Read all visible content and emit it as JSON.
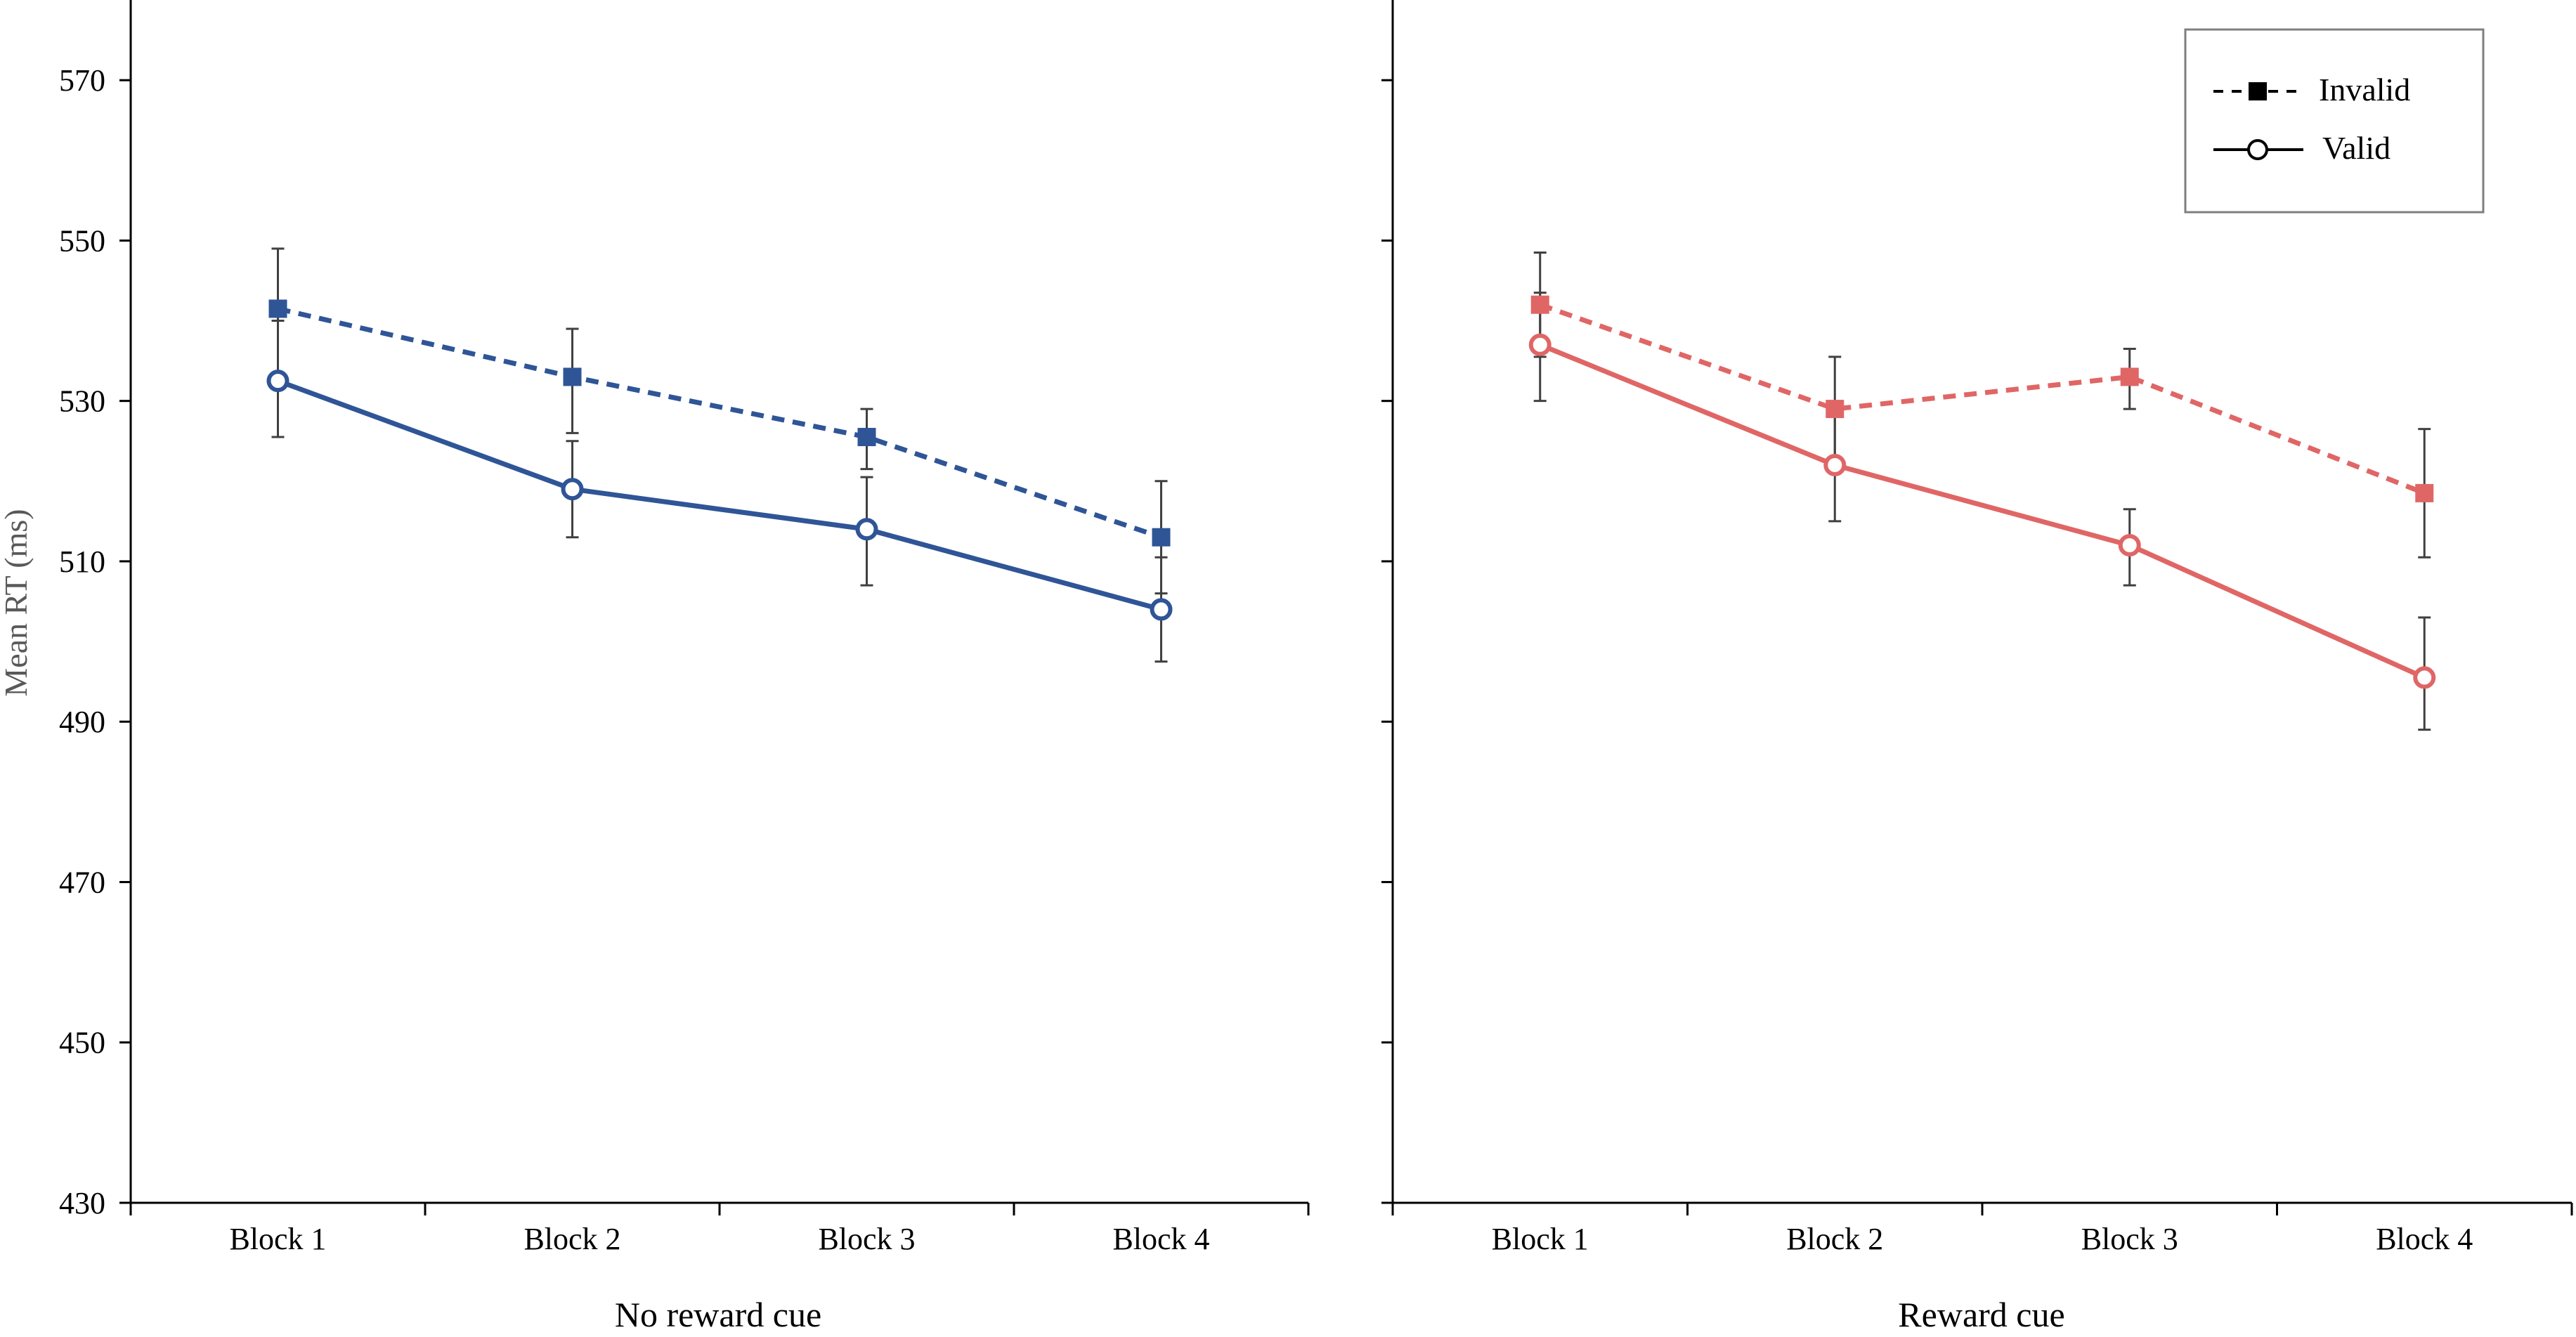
{
  "chart_data": [
    {
      "type": "line",
      "panel": "left",
      "xlabel": "No reward cue",
      "ylabel": "Mean RT (ms)",
      "ylim": [
        430,
        580
      ],
      "yticks": [
        430,
        450,
        470,
        490,
        510,
        530,
        550,
        570
      ],
      "categories": [
        "Block 1",
        "Block 2",
        "Block 3",
        "Block 4"
      ],
      "series": [
        {
          "name": "Invalid",
          "style": "dashed",
          "marker": "filled-square",
          "color": "#2f5597",
          "values": [
            541.5,
            533,
            525.5,
            513
          ],
          "err_low": [
            532.5,
            526,
            521.5,
            506
          ],
          "err_high": [
            549,
            539,
            529,
            520
          ]
        },
        {
          "name": "Valid",
          "style": "solid",
          "marker": "open-circle",
          "color": "#2f5597",
          "values": [
            532.5,
            519,
            514,
            504
          ],
          "err_low": [
            525.5,
            513,
            507,
            497.5
          ],
          "err_high": [
            540,
            525,
            520.5,
            510.5
          ]
        }
      ]
    },
    {
      "type": "line",
      "panel": "right",
      "xlabel": "Reward cue",
      "ylim": [
        430,
        580
      ],
      "categories": [
        "Block 1",
        "Block 2",
        "Block 3",
        "Block 4"
      ],
      "series": [
        {
          "name": "Invalid",
          "style": "dashed",
          "marker": "filled-square",
          "color": "#e06666",
          "values": [
            542,
            529,
            533,
            518.5
          ],
          "err_low": [
            535.5,
            522.5,
            529,
            510.5
          ],
          "err_high": [
            548.5,
            535.5,
            536.5,
            526.5
          ]
        },
        {
          "name": "Valid",
          "style": "solid",
          "marker": "open-circle",
          "color": "#e06666",
          "values": [
            537,
            522,
            512,
            495.5
          ],
          "err_low": [
            530,
            515,
            507,
            489
          ],
          "err_high": [
            543.5,
            529,
            516.5,
            503
          ]
        }
      ]
    }
  ],
  "legend": {
    "placement": "top-right of right panel",
    "items": [
      {
        "label": "Invalid",
        "style": "dashed",
        "marker": "filled-square"
      },
      {
        "label": "Valid",
        "style": "solid",
        "marker": "open-circle"
      }
    ]
  }
}
